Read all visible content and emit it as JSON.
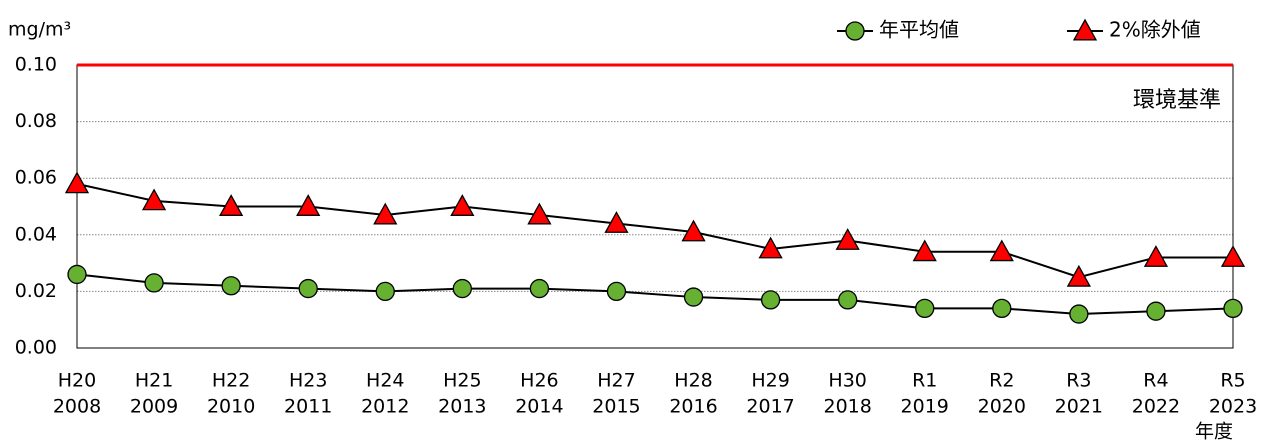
{
  "chart_data": {
    "type": "line",
    "y_label": "mg/m³",
    "x_label": "年度",
    "categories": [
      [
        "H20",
        "2008"
      ],
      [
        "H21",
        "2009"
      ],
      [
        "H22",
        "2010"
      ],
      [
        "H23",
        "2011"
      ],
      [
        "H24",
        "2012"
      ],
      [
        "H25",
        "2013"
      ],
      [
        "H26",
        "2014"
      ],
      [
        "H27",
        "2015"
      ],
      [
        "H28",
        "2016"
      ],
      [
        "H29",
        "2017"
      ],
      [
        "H30",
        "2018"
      ],
      [
        "R1",
        "2019"
      ],
      [
        "R2",
        "2020"
      ],
      [
        "R3",
        "2021"
      ],
      [
        "R4",
        "2022"
      ],
      [
        "R5",
        "2023"
      ]
    ],
    "series": [
      {
        "name": "年平均値",
        "color": "#66b032",
        "marker": "circle",
        "values": [
          0.026,
          0.023,
          0.022,
          0.021,
          0.02,
          0.021,
          0.021,
          0.02,
          0.018,
          0.017,
          0.017,
          0.014,
          0.014,
          0.012,
          0.013,
          0.014
        ]
      },
      {
        "name": "2%除外値",
        "color": "#ff0000",
        "marker": "triangle",
        "values": [
          0.058,
          0.052,
          0.05,
          0.05,
          0.047,
          0.05,
          0.047,
          0.044,
          0.041,
          0.035,
          0.038,
          0.034,
          0.034,
          0.025,
          0.032,
          0.032
        ]
      }
    ],
    "line_color": "#000000",
    "ylim": [
      0,
      0.1
    ],
    "yticks": [
      {
        "value": 0,
        "label": "0.00"
      },
      {
        "value": 0.02,
        "label": "0.02"
      },
      {
        "value": 0.04,
        "label": "0.04"
      },
      {
        "value": 0.06,
        "label": "0.06"
      },
      {
        "value": 0.08,
        "label": "0.08"
      },
      {
        "value": 0.1,
        "label": "0.10"
      }
    ],
    "grid": true,
    "legend": "top-right",
    "reference_line": {
      "value": 0.1,
      "label": "環境基準",
      "color": "#ff0000"
    }
  }
}
